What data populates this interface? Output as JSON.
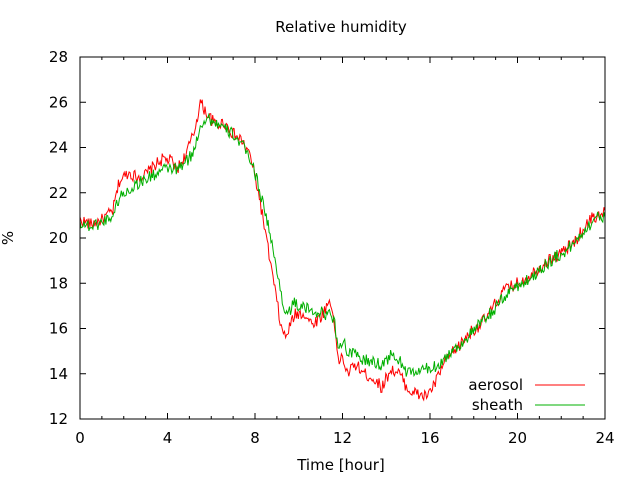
{
  "chart_data": {
    "type": "line",
    "title": "Relative humidity",
    "xlabel": "Time [hour]",
    "ylabel": "%",
    "xlim": [
      0,
      24
    ],
    "ylim": [
      12,
      28
    ],
    "x_ticks": [
      "0",
      "4",
      "8",
      "12",
      "16",
      "20",
      "24"
    ],
    "y_ticks": [
      "12",
      "14",
      "16",
      "18",
      "20",
      "22",
      "24",
      "26",
      "28"
    ],
    "grid": false,
    "legend_position": "bottom-right",
    "series": [
      {
        "name": "aerosol",
        "color": "#ff0000",
        "x": [
          0,
          0.5,
          1,
          1.5,
          1.8,
          2.2,
          2.6,
          3,
          3.4,
          3.8,
          4.2,
          4.4,
          4.8,
          5.2,
          5.5,
          5.8,
          6.2,
          6.6,
          7,
          7.4,
          7.8,
          8.2,
          8.6,
          9,
          9.2,
          9.4,
          9.8,
          10.2,
          10.6,
          11,
          11.4,
          11.6,
          11.8,
          12,
          12.2,
          12.6,
          13,
          13.4,
          13.8,
          14.2,
          14.6,
          15,
          15.4,
          15.8,
          16.2,
          16.6,
          17,
          17.4,
          17.8,
          18.2,
          18.6,
          19,
          19.4,
          19.8,
          20.2,
          20.6,
          21,
          21.4,
          21.8,
          22.2,
          22.6,
          23,
          23.4,
          23.8,
          24
        ],
        "values": [
          20.8,
          20.6,
          20.8,
          21.2,
          22.5,
          22.9,
          22.7,
          22.8,
          23.2,
          23.5,
          23.4,
          23.0,
          23.6,
          24.6,
          26.0,
          25.5,
          25.0,
          25.1,
          24.6,
          24.3,
          23.6,
          21.8,
          19.5,
          17.2,
          16.0,
          15.6,
          16.6,
          16.7,
          16.2,
          16.5,
          17.2,
          16.6,
          14.5,
          14.8,
          14.0,
          14.4,
          14.0,
          13.8,
          13.4,
          14.2,
          14.0,
          13.3,
          13.1,
          13.0,
          13.5,
          14.4,
          14.9,
          15.3,
          15.8,
          16.1,
          16.5,
          17.1,
          17.7,
          17.9,
          18.1,
          18.4,
          18.7,
          19.0,
          19.2,
          19.5,
          19.8,
          20.4,
          20.9,
          21.0,
          21.2
        ]
      },
      {
        "name": "sheath",
        "color": "#00b000",
        "x": [
          0,
          0.5,
          1,
          1.5,
          1.8,
          2.2,
          2.6,
          3,
          3.4,
          3.8,
          4.2,
          4.4,
          4.8,
          5.2,
          5.5,
          5.8,
          6.2,
          6.6,
          7,
          7.4,
          7.8,
          8.2,
          8.6,
          9,
          9.2,
          9.4,
          9.8,
          10.2,
          10.6,
          11,
          11.4,
          11.6,
          11.8,
          12,
          12.2,
          12.6,
          13,
          13.4,
          13.8,
          14.2,
          14.6,
          15,
          15.4,
          15.8,
          16.2,
          16.6,
          17,
          17.4,
          17.8,
          18.2,
          18.6,
          19,
          19.4,
          19.8,
          20.2,
          20.6,
          21,
          21.4,
          21.8,
          22.2,
          22.6,
          23,
          23.4,
          23.8,
          24
        ],
        "values": [
          20.7,
          20.5,
          20.7,
          21.0,
          21.8,
          22.1,
          22.4,
          22.6,
          22.8,
          23.0,
          23.1,
          23.0,
          23.3,
          23.8,
          25.0,
          25.3,
          25.1,
          24.8,
          24.6,
          24.1,
          23.5,
          22.2,
          20.6,
          18.5,
          17.6,
          16.6,
          17.1,
          16.9,
          16.8,
          16.7,
          16.6,
          16.5,
          15.2,
          15.5,
          15.0,
          14.8,
          14.6,
          14.5,
          14.4,
          14.8,
          14.6,
          14.0,
          14.1,
          14.2,
          14.3,
          14.6,
          15.0,
          15.3,
          15.7,
          16.1,
          16.5,
          16.9,
          17.4,
          17.8,
          18.0,
          18.2,
          18.6,
          18.9,
          19.2,
          19.4,
          19.8,
          20.3,
          20.7,
          21.0,
          20.9
        ]
      }
    ]
  }
}
